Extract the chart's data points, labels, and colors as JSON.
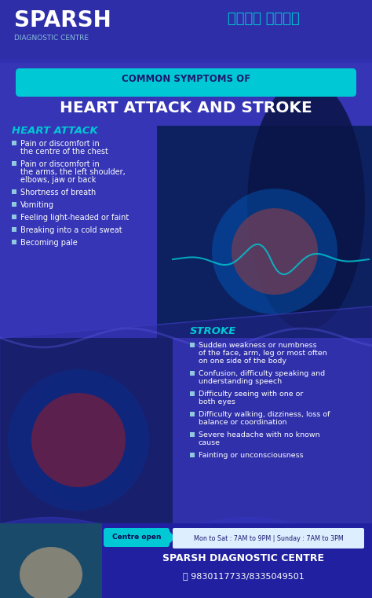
{
  "bg_color": "#3535b5",
  "fig_width": 4.74,
  "fig_height": 7.61,
  "header_text_sparsh": "SPARSH",
  "header_subtext": "DIAGNOSTIC CENTRE",
  "header_bengali": "ভালো থেকো",
  "banner_text1": "COMMON SYMPTOMS OF",
  "banner_text2": "HEART ATTACK AND STROKE",
  "heart_attack_title": "HEART ATTACK",
  "heart_attack_symptoms": [
    "Pain or discomfort in\nthe centre of the chest",
    "Pain or discomfort in\nthe arms, the left shoulder,\nelbows, jaw or back",
    "Shortness of breath",
    "Vomiting",
    "Feeling light-headed or faint",
    "Breaking into a cold sweat",
    "Becoming pale"
  ],
  "stroke_title": "STROKE",
  "stroke_symptoms": [
    "Sudden weakness or numbness\nof the face, arm, leg or most often\non one side of the body",
    "Confusion, difficulty speaking and\nunderstanding speech",
    "Difficulty seeing with one or\nboth eyes",
    "Difficulty walking, dizziness, loss of\nbalance or coordination",
    "Severe headache with no known\ncause",
    "Fainting or unconsciousness"
  ],
  "footer_open_label": "Centre open",
  "footer_hours": "Mon to Sat : 7AM to 9PM | Sunday : 7AM to 3PM",
  "footer_name": "SPARSH DIAGNOSTIC CENTRE",
  "footer_phone": "ⓘ 9830117733/8335049501",
  "cyan_color": "#00c8d4",
  "white_color": "#ffffff",
  "bullet_color": "#90c8e0",
  "dark_blue": "#1a1a80",
  "footer_bg": "#2020a0",
  "heart_bg": "#0d2060",
  "brain_bg": "#0d1a50"
}
